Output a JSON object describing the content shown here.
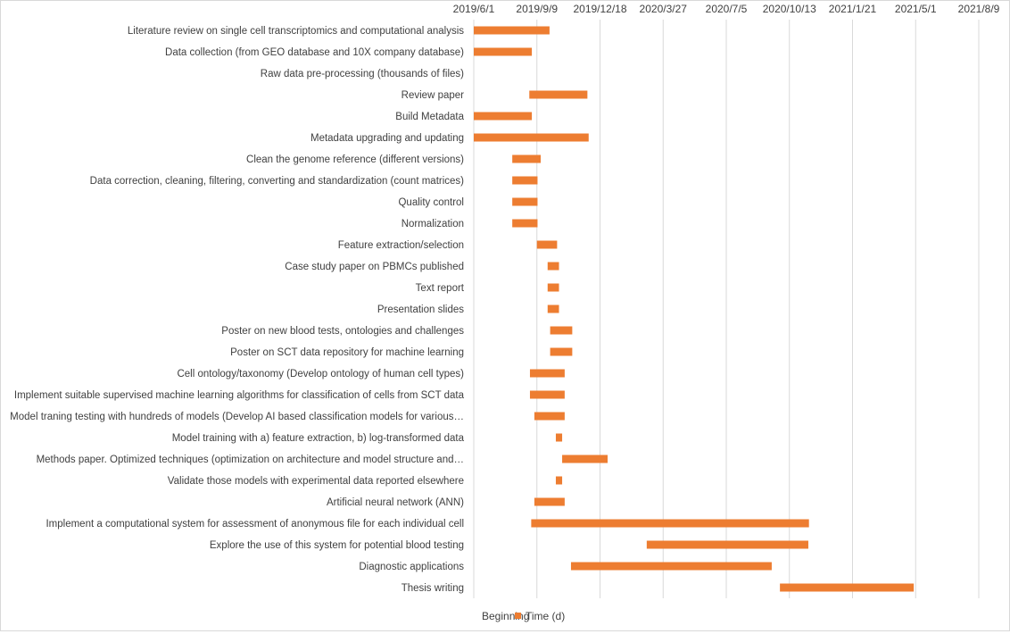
{
  "colors": {
    "beginning": "#ffffff",
    "duration": "#ED7D31",
    "grid": "#d9d9d9",
    "text": "#404040",
    "frame": "#d9d9d9"
  },
  "chart_data": {
    "type": "bar",
    "orientation": "horizontal",
    "stacked": true,
    "title": "",
    "xlabel": "",
    "ylabel": "",
    "x_axis_position": "top",
    "grid": "vertical",
    "legend_position": "bottom",
    "xlim": [
      "2019-06-01",
      "2021-08-09"
    ],
    "x_tick_labels": [
      "2019/6/1",
      "2019/9/9",
      "2019/12/18",
      "2020/3/27",
      "2020/7/5",
      "2020/10/13",
      "2021/1/21",
      "2021/5/1",
      "2021/8/9"
    ],
    "legend": [
      "Beginning",
      "Time (d)"
    ],
    "categories": [
      "Literature review on single cell transcriptomics and computational analysis",
      "Data collection (from GEO database and 10X company database)",
      "Raw data pre-processing (thousands of files)",
      "Review paper",
      "Build Metadata",
      "Metadata upgrading and updating",
      "Clean the genome reference (different versions)",
      "Data correction, cleaning, filtering, converting and standardization (count matrices)",
      "Quality control",
      "Normalization",
      "Feature extraction/selection",
      "Case study paper on PBMCs published",
      "Text report",
      "Presentation slides",
      "Poster on new blood tests, ontologies and challenges",
      "Poster on SCT data repository for machine learning",
      "Cell ontology/taxonomy (Develop ontology of human cell types)",
      "Implement suitable supervised machine learning algorithms for classification of cells from SCT data",
      "Model traning testing with hundreds of models (Develop AI based classification models for various…",
      "Model training with a) feature extraction, b) log-transformed data",
      "Methods paper. Optimized techniques (optimization on architecture and model structure and…",
      "Validate those models with experimental data reported elsewhere",
      "Artificial neural network (ANN)",
      "Implement a computational system for assessment of anonymous file for each individual cell",
      "Explore the use of this system for potential blood testing",
      "Diagnostic applications",
      "Thesis writing"
    ],
    "series": [
      {
        "name": "Beginning",
        "values": [
          "2019-06-01",
          "2019-06-01",
          "2019-06-01",
          "2019-08-28",
          "2019-06-01",
          "2019-06-01",
          "2019-08-01",
          "2019-08-01",
          "2019-08-01",
          "2019-08-01",
          "2019-09-09",
          "2019-09-26",
          "2019-09-26",
          "2019-09-26",
          "2019-09-30",
          "2019-09-30",
          "2019-08-29",
          "2019-08-29",
          "2019-09-05",
          "2019-10-09",
          "2019-10-19",
          "2019-10-09",
          "2019-09-05",
          "2019-08-31",
          "2020-03-01",
          "2019-11-02",
          "2020-09-28"
        ]
      },
      {
        "name": "Time (d)",
        "values": [
          120,
          92,
          0,
          92,
          92,
          182,
          45,
          40,
          40,
          40,
          32,
          18,
          18,
          18,
          35,
          35,
          55,
          55,
          48,
          10,
          72,
          10,
          48,
          440,
          256,
          318,
          212
        ]
      }
    ]
  }
}
